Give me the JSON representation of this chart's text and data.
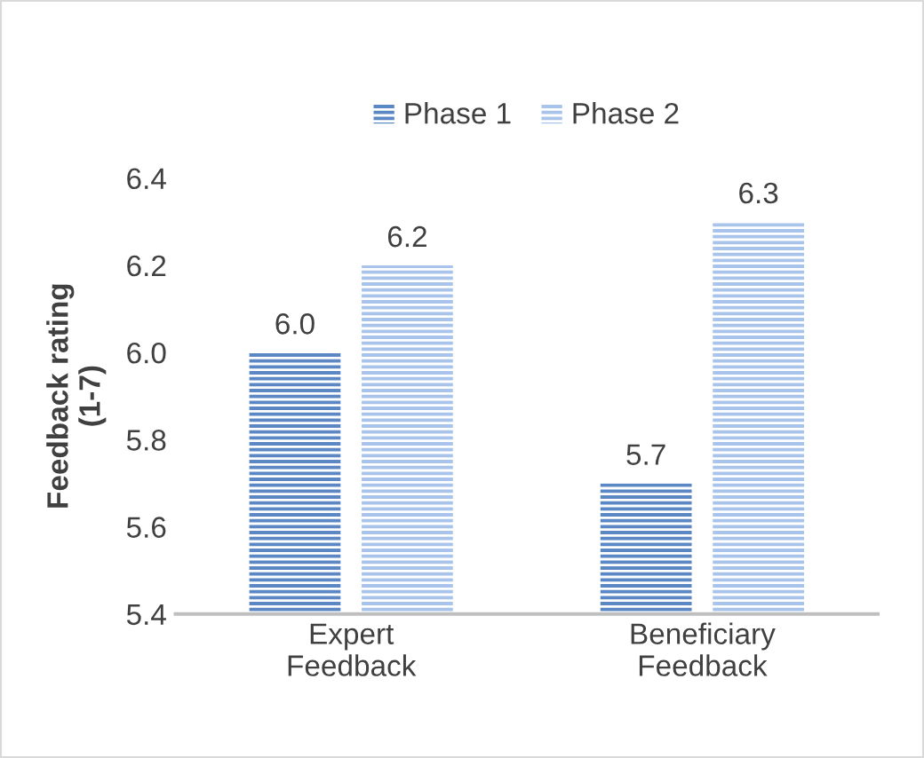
{
  "chart_data": {
    "type": "bar",
    "categories": [
      "Expert\nFeedback",
      "Beneficiary\nFeedback"
    ],
    "ylabel": "Feedback rating\n(1-7)",
    "series": [
      {
        "name": "Phase 1",
        "color": "#5b87c5",
        "values": [
          6.0,
          5.7
        ],
        "value_labels": [
          "6.0",
          "5.7"
        ]
      },
      {
        "name": "Phase 2",
        "color": "#a9c4ea",
        "values": [
          6.2,
          6.3
        ],
        "value_labels": [
          "6.2",
          "6.3"
        ]
      }
    ],
    "ylim": [
      5.4,
      6.4
    ],
    "yticks": [
      {
        "value": 5.4,
        "label": "5.4"
      },
      {
        "value": 5.6,
        "label": "5.6"
      },
      {
        "value": 5.8,
        "label": "5.8"
      },
      {
        "value": 6.0,
        "label": "6.0"
      },
      {
        "value": 6.2,
        "label": "6.2"
      },
      {
        "value": 6.4,
        "label": "6.4"
      }
    ],
    "grid": false,
    "legend": "top"
  }
}
